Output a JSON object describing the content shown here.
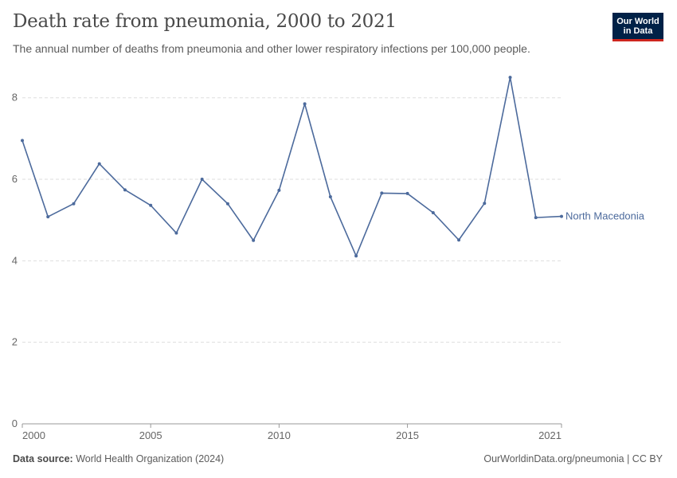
{
  "header": {
    "title": "Death rate from pneumonia, 2000 to 2021",
    "subtitle": "The annual number of deaths from pneumonia and other lower respiratory infections per 100,000 people."
  },
  "logo": {
    "line1": "Our World",
    "line2": "in Data"
  },
  "footer": {
    "source_label": "Data source:",
    "source_text": "World Health Organization (2024)",
    "right_text": "OurWorldinData.org/pneumonia | CC BY"
  },
  "colors": {
    "series": "#4c6a9c",
    "grid": "#dddddd",
    "axis": "#999999"
  },
  "chart_data": {
    "type": "line",
    "title": "Death rate from pneumonia, 2000 to 2021",
    "xlabel": "",
    "ylabel": "",
    "xlim": [
      2000,
      2021
    ],
    "ylim": [
      0,
      8.6
    ],
    "x_ticks": [
      "2000",
      "2005",
      "2010",
      "2015",
      "2021"
    ],
    "y_ticks": [
      "0",
      "2",
      "4",
      "6",
      "8"
    ],
    "grid": true,
    "series": [
      {
        "name": "North Macedonia",
        "x": [
          2000,
          2001,
          2002,
          2003,
          2004,
          2005,
          2006,
          2007,
          2008,
          2009,
          2010,
          2011,
          2012,
          2013,
          2014,
          2015,
          2016,
          2017,
          2018,
          2019,
          2020,
          2021
        ],
        "values": [
          6.95,
          5.08,
          5.4,
          6.38,
          5.74,
          5.36,
          4.68,
          6.0,
          5.4,
          4.5,
          5.73,
          7.85,
          5.57,
          4.12,
          5.66,
          5.65,
          5.18,
          4.51,
          5.41,
          8.5,
          5.06,
          5.09
        ]
      }
    ]
  }
}
